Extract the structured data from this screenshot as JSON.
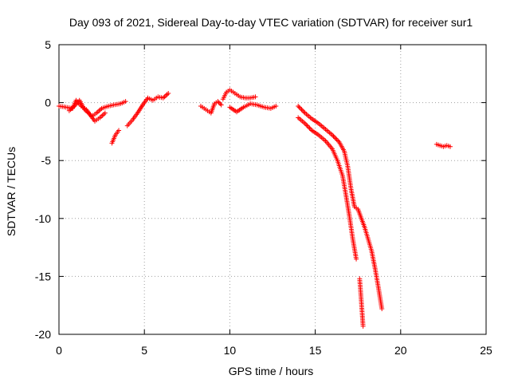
{
  "chart_data": {
    "type": "scatter",
    "title": "Day 093 of 2021, Sidereal Day-to-day VTEC variation (SDTVAR) for receiver sur1",
    "xlabel": "GPS time / hours",
    "ylabel": "SDTVAR / TECUs",
    "xlim": [
      0,
      25
    ],
    "ylim": [
      -20,
      5
    ],
    "xticks": [
      0,
      5,
      10,
      15,
      20,
      25
    ],
    "yticks": [
      -20,
      -15,
      -10,
      -5,
      0,
      5
    ],
    "grid": true,
    "marker": "+",
    "color": "#ff0000",
    "series": [
      {
        "name": "SDTVAR",
        "segments": [
          {
            "x": [
              0.0,
              0.4,
              0.8,
              1.0,
              1.3,
              1.6,
              1.9,
              2.2,
              2.5,
              2.9,
              3.2,
              3.6,
              3.9
            ],
            "y": [
              -0.3,
              -0.4,
              -0.5,
              0.2,
              -0.3,
              -0.6,
              -1.2,
              -0.9,
              -0.5,
              -0.3,
              -0.2,
              -0.1,
              0.1
            ]
          },
          {
            "x": [
              0.6,
              0.9,
              1.2,
              1.5,
              1.8,
              2.1,
              2.4,
              2.7
            ],
            "y": [
              -0.7,
              -0.3,
              0.2,
              -0.6,
              -1.0,
              -1.6,
              -1.3,
              -0.9
            ]
          },
          {
            "x": [
              3.1,
              3.3,
              3.5
            ],
            "y": [
              -3.5,
              -2.8,
              -2.4
            ]
          },
          {
            "x": [
              4.0,
              4.3,
              4.6,
              4.9,
              5.2,
              5.5,
              5.8,
              6.1,
              6.4
            ],
            "y": [
              -2.0,
              -1.5,
              -0.9,
              -0.2,
              0.4,
              0.2,
              0.5,
              0.4,
              0.8
            ]
          },
          {
            "x": [
              8.3,
              8.6,
              8.9,
              9.1,
              9.3,
              9.5
            ],
            "y": [
              -0.3,
              -0.6,
              -0.9,
              -0.1,
              0.1,
              -0.2
            ]
          },
          {
            "x": [
              9.6,
              9.8,
              10.0,
              10.3,
              10.6,
              10.9,
              11.2,
              11.5
            ],
            "y": [
              0.3,
              0.9,
              1.1,
              0.8,
              0.5,
              0.4,
              0.4,
              0.5
            ]
          },
          {
            "x": [
              10.0,
              10.4,
              10.8,
              11.2,
              11.6,
              12.0,
              12.4,
              12.7
            ],
            "y": [
              -0.4,
              -0.8,
              -0.4,
              -0.1,
              -0.2,
              -0.4,
              -0.5,
              -0.3
            ]
          },
          {
            "x": [
              14.0,
              14.4,
              14.8,
              15.2,
              15.6,
              16.0,
              16.4,
              16.7,
              16.9,
              17.1,
              17.3,
              17.5,
              17.7,
              17.9,
              18.1,
              18.3,
              18.5,
              18.7,
              18.9
            ],
            "y": [
              -0.3,
              -0.9,
              -1.4,
              -1.8,
              -2.3,
              -2.8,
              -3.4,
              -4.2,
              -5.5,
              -7.5,
              -9.0,
              -9.2,
              -10.0,
              -10.8,
              -11.8,
              -12.8,
              -14.3,
              -16.0,
              -17.8
            ]
          },
          {
            "x": [
              14.0,
              14.4,
              14.8,
              15.2,
              15.6,
              16.0,
              16.3,
              16.6,
              16.8,
              17.0,
              17.2,
              17.4
            ],
            "y": [
              -1.3,
              -1.8,
              -2.4,
              -2.8,
              -3.3,
              -4.0,
              -5.0,
              -6.3,
              -8.0,
              -9.8,
              -11.8,
              -13.5
            ]
          },
          {
            "x": [
              17.6,
              17.7,
              17.8
            ],
            "y": [
              -15.2,
              -17.2,
              -19.3
            ]
          },
          {
            "x": [
              22.1,
              22.3,
              22.5,
              22.7,
              22.9
            ],
            "y": [
              -3.6,
              -3.7,
              -3.8,
              -3.7,
              -3.8
            ]
          }
        ]
      }
    ]
  }
}
